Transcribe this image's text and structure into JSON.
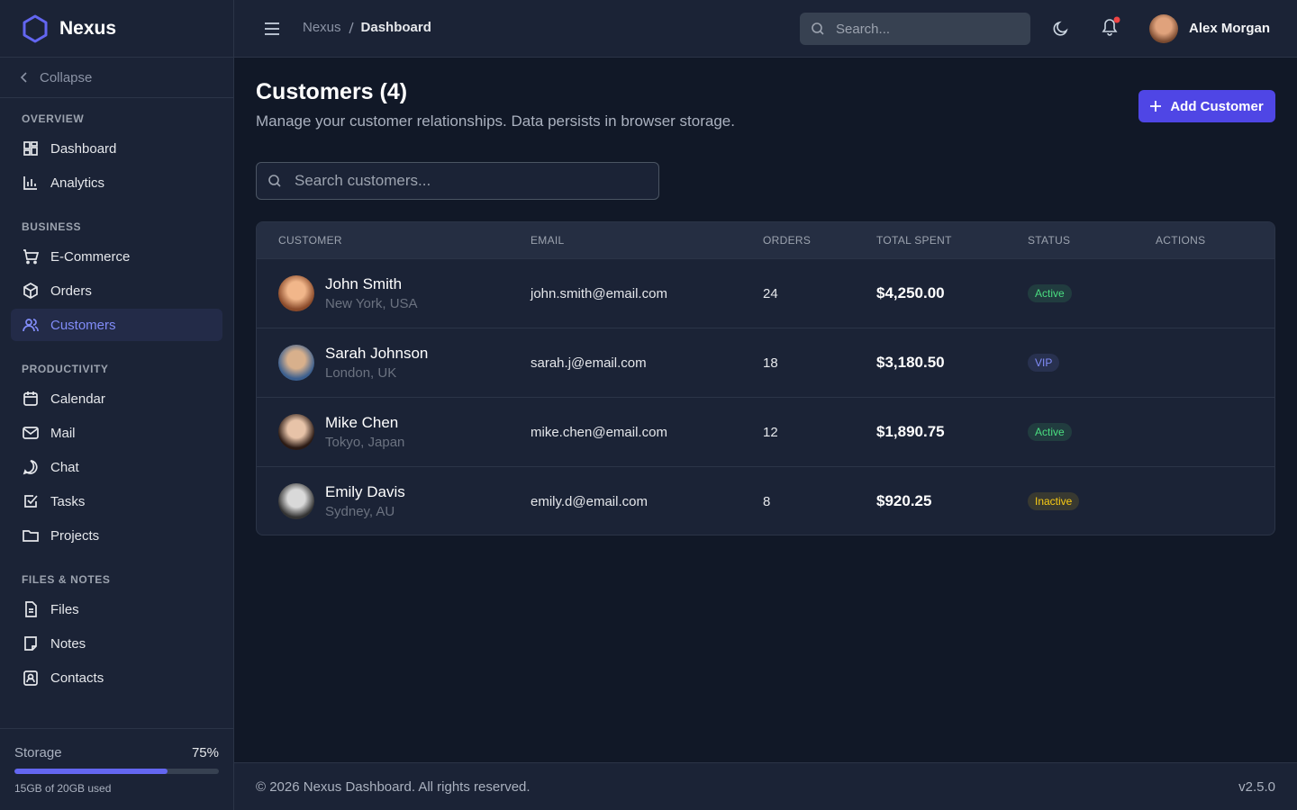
{
  "brand": "Nexus",
  "sidebar": {
    "collapse": "Collapse",
    "sections": [
      {
        "title": "OVERVIEW",
        "items": [
          {
            "label": "Dashboard"
          },
          {
            "label": "Analytics"
          }
        ]
      },
      {
        "title": "BUSINESS",
        "items": [
          {
            "label": "E-Commerce"
          },
          {
            "label": "Orders"
          },
          {
            "label": "Customers",
            "active": true
          }
        ]
      },
      {
        "title": "PRODUCTIVITY",
        "items": [
          {
            "label": "Calendar"
          },
          {
            "label": "Mail"
          },
          {
            "label": "Chat"
          },
          {
            "label": "Tasks"
          },
          {
            "label": "Projects"
          }
        ]
      },
      {
        "title": "FILES & NOTES",
        "items": [
          {
            "label": "Files"
          },
          {
            "label": "Notes"
          },
          {
            "label": "Contacts"
          }
        ]
      }
    ]
  },
  "storage": {
    "label": "Storage",
    "percent": 75,
    "percent_label": "75%",
    "used": "15GB of 20GB used"
  },
  "header": {
    "breadcrumb": [
      "Nexus",
      "Dashboard"
    ],
    "search_placeholder": "Search...",
    "user": "Alex Morgan"
  },
  "page": {
    "title": "Customers (4)",
    "subtitle": "Manage your customer relationships. Data persists in browser storage.",
    "add_button": "Add Customer",
    "search_placeholder": "Search customers..."
  },
  "table": {
    "columns": [
      "CUSTOMER",
      "EMAIL",
      "ORDERS",
      "TOTAL SPENT",
      "STATUS",
      "ACTIONS"
    ],
    "rows": [
      {
        "name": "John Smith",
        "location": "New York, USA",
        "email": "john.smith@email.com",
        "orders": 24,
        "total": "$4,250.00",
        "status": "Active",
        "status_color": "#4ade80"
      },
      {
        "name": "Sarah Johnson",
        "location": "London, UK",
        "email": "sarah.j@email.com",
        "orders": 18,
        "total": "$3,180.50",
        "status": "VIP",
        "status_color": "#818cf8"
      },
      {
        "name": "Mike Chen",
        "location": "Tokyo, Japan",
        "email": "mike.chen@email.com",
        "orders": 12,
        "total": "$1,890.75",
        "status": "Active",
        "status_color": "#4ade80"
      },
      {
        "name": "Emily Davis",
        "location": "Sydney, AU",
        "email": "emily.d@email.com",
        "orders": 8,
        "total": "$920.25",
        "status": "Inactive",
        "status_color": "#facc15"
      }
    ]
  },
  "footer": {
    "copyright": "© 2026 Nexus Dashboard. All rights reserved.",
    "version": "v2.5.0"
  }
}
